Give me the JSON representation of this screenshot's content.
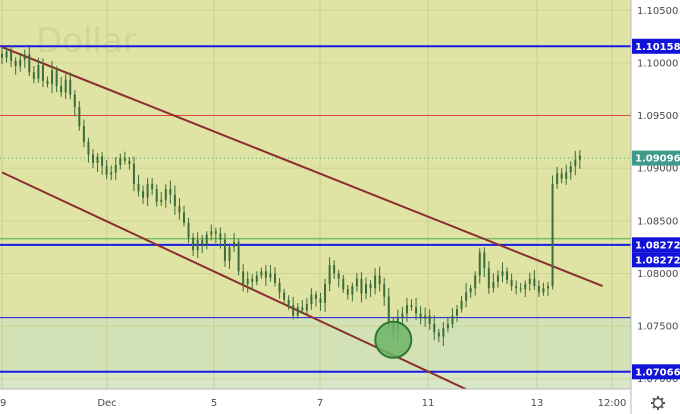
{
  "watermark": "Dollar",
  "settings_icon": "gear-icon",
  "colors": {
    "background": "#ffffff",
    "upper_zone": "#dfe3a3",
    "lower_zone": "#d2e2b6",
    "bottom_zone": "#d8e6c8",
    "level_line": "#1a1ae6",
    "resistance_line": "#e0484d",
    "channel_line": "#8b2e2e",
    "candle": "#3c6d3a",
    "price_badge": "#3f9a8a",
    "level_badge": "#1212d8",
    "circle_fill": "#6fb46a",
    "circle_stroke": "#2d7a2d",
    "dotted_line": "#5aa06a"
  },
  "chart_data": {
    "type": "candlestick",
    "title": "",
    "x_tick_labels": [
      "9",
      "Dec",
      "5",
      "7",
      "11",
      "13",
      "12:00"
    ],
    "y_tick_labels": [
      "1.10500",
      "1.10000",
      "1.09500",
      "1.09000",
      "1.08500",
      "1.08000",
      "1.07500",
      "1.07000"
    ],
    "ylim": [
      1.0695,
      1.1055
    ],
    "horizontal_levels": [
      {
        "name": "resistance-1.10158",
        "value": 1.10158,
        "color": "#1a1ae6",
        "badge": "1.10158"
      },
      {
        "name": "resistance-1.09500",
        "value": 1.095,
        "color": "#e0484d"
      },
      {
        "name": "support-1.08272",
        "value": 1.08272,
        "color": "#1a1ae6",
        "badge": "1.08272"
      },
      {
        "name": "support-1.08330",
        "value": 1.0833,
        "color": "#4caf50"
      },
      {
        "name": "support-1.07580",
        "value": 1.0758,
        "color": "#1a1ae6"
      },
      {
        "name": "support-1.07066",
        "value": 1.07066,
        "color": "#1a1ae6",
        "badge": "1.07066"
      }
    ],
    "last_price": {
      "value": 1.09096,
      "badge": "1.09096",
      "sub_badge": "1.08272"
    },
    "trendlines": [
      {
        "name": "channel-upper",
        "points": [
          {
            "bar": 0,
            "value": 1.1015
          },
          {
            "bar": 132,
            "value": 1.0788
          }
        ]
      },
      {
        "name": "channel-lower",
        "points": [
          {
            "bar": 0,
            "value": 1.0896
          },
          {
            "bar": 104,
            "value": 1.0686
          }
        ]
      }
    ],
    "highlight_circle": {
      "bar": 86,
      "value": 1.0737
    },
    "closes": [
      1.1005,
      1.1011,
      1.1002,
      1.0997,
      1.1003,
      1.1008,
      1.0991,
      1.0985,
      1.0998,
      1.0983,
      1.098,
      1.0993,
      1.0978,
      1.0972,
      1.0984,
      1.097,
      1.0958,
      1.094,
      1.0925,
      1.0913,
      1.0905,
      1.0911,
      1.0902,
      1.0894,
      1.0896,
      1.0903,
      1.091,
      1.0907,
      1.0904,
      1.0885,
      1.0878,
      1.0872,
      1.0885,
      1.088,
      1.0868,
      1.087,
      1.088,
      1.0875,
      1.0864,
      1.0858,
      1.0848,
      1.0834,
      1.0822,
      1.0832,
      1.0828,
      1.0837,
      1.084,
      1.0838,
      1.0832,
      1.0812,
      1.0825,
      1.083,
      1.0802,
      1.079,
      1.0795,
      1.0792,
      1.0798,
      1.0802,
      1.0796,
      1.08,
      1.0791,
      1.0782,
      1.0775,
      1.077,
      1.076,
      1.0768,
      1.0765,
      1.0771,
      1.078,
      1.0776,
      1.0772,
      1.079,
      1.0808,
      1.08,
      1.0795,
      1.0785,
      1.078,
      1.0788,
      1.0795,
      1.0781,
      1.079,
      1.0786,
      1.0798,
      1.079,
      1.0778,
      1.0752,
      1.0745,
      1.0758,
      1.0762,
      1.077,
      1.0768,
      1.0762,
      1.0757,
      1.076,
      1.0752,
      1.0744,
      1.074,
      1.0748,
      1.0752,
      1.076,
      1.0766,
      1.0774,
      1.0782,
      1.0786,
      1.0798,
      1.082,
      1.0805,
      1.0786,
      1.0792,
      1.0798,
      1.0802,
      1.0794,
      1.0788,
      1.0786,
      1.0785,
      1.079,
      1.0795,
      1.0788,
      1.0782,
      1.0786,
      1.0788,
      1.0885,
      1.0895,
      1.089,
      1.0896,
      1.0902,
      1.0908,
      1.0912
    ],
    "grid": true,
    "legend": "none"
  }
}
